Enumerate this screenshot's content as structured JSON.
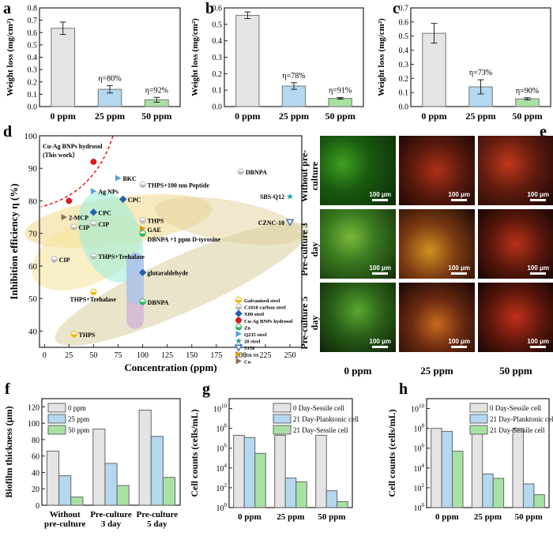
{
  "panels": {
    "a": "a",
    "b": "b",
    "c": "c",
    "d": "d",
    "e": "e",
    "f": "f",
    "g": "g",
    "h": "h"
  },
  "microscopy": {
    "rows": [
      "Without pre-culture",
      "Pre-culture 3 day",
      "Pre-culture 5 day"
    ],
    "cols": [
      "0 ppm",
      "25 ppm",
      "50 ppm"
    ],
    "scale_bar": "100 μm"
  },
  "colors": {
    "gray": "#e4e4e4",
    "blue": "#b3d8ef",
    "green": "#a8e2a3"
  },
  "chart_data": [
    {
      "id": "a",
      "type": "bar",
      "categories": [
        "0 ppm",
        "25 ppm",
        "50 ppm"
      ],
      "values": [
        0.635,
        0.14,
        0.055
      ],
      "errors": [
        0.05,
        0.03,
        0.02
      ],
      "annotations": [
        "",
        "η=80%",
        "η=92%"
      ],
      "ylabel": "Weight loss (mg/cm²)",
      "ylim": [
        0,
        0.8
      ],
      "yticks": [
        0.0,
        0.1,
        0.2,
        0.3,
        0.4,
        0.5,
        0.6,
        0.7,
        0.8
      ]
    },
    {
      "id": "b",
      "type": "bar",
      "categories": [
        "0 ppm",
        "25 ppm",
        "50 ppm"
      ],
      "values": [
        0.555,
        0.125,
        0.05
      ],
      "errors": [
        0.02,
        0.02,
        0.005
      ],
      "annotations": [
        "",
        "η=78%",
        "η=91%"
      ],
      "ylabel": "Weight loss (mg/cm²)",
      "ylim": [
        0,
        0.6
      ],
      "yticks": [
        0.0,
        0.1,
        0.2,
        0.3,
        0.4,
        0.5,
        0.6
      ]
    },
    {
      "id": "c",
      "type": "bar",
      "categories": [
        "0 ppm",
        "25 ppm",
        "50 ppm"
      ],
      "values": [
        0.52,
        0.14,
        0.055
      ],
      "errors": [
        0.07,
        0.05,
        0.008
      ],
      "annotations": [
        "",
        "η=73%",
        "η=90%"
      ],
      "ylabel": "Weight loss (mg/cm²)",
      "ylim": [
        0,
        0.7
      ],
      "yticks": [
        0.0,
        0.1,
        0.2,
        0.3,
        0.4,
        0.5,
        0.6,
        0.7
      ]
    },
    {
      "id": "d",
      "type": "scatter",
      "xlabel": "Concentration (ppm)",
      "ylabel": "Inhibition efficiency  η (%)",
      "xlim": [
        -5,
        262
      ],
      "ylim": [
        35,
        100
      ],
      "xticks": [
        0,
        25,
        50,
        75,
        100,
        125,
        150,
        175,
        200,
        225,
        250
      ],
      "yticks": [
        40,
        50,
        60,
        70,
        80,
        90,
        100
      ],
      "annotation": [
        "Cu-Ag BNPs hydrosol",
        "(This work）"
      ],
      "legend": [
        {
          "name": "Galvanized steel",
          "color": "#f5b800",
          "marker": "half"
        },
        {
          "name": "C1018 carbon steel",
          "color": "#b8b8b8",
          "marker": "half"
        },
        {
          "name": "X80 steel",
          "color": "#2460b0",
          "marker": "diamond"
        },
        {
          "name": "Cu-Ag BNPs hydrosol",
          "color": "#e8141c",
          "marker": "circle"
        },
        {
          "name": "Zn",
          "color": "#29b35a",
          "marker": "half"
        },
        {
          "name": "Q235 steel",
          "color": "#5aa0d8",
          "marker": "tri-right"
        },
        {
          "name": "20 steel",
          "color": "#1aa0a0",
          "marker": "star"
        },
        {
          "name": "S150",
          "color": "#2a5fae",
          "marker": "tri-down"
        },
        {
          "name": "316 SS",
          "color": "#d89a10",
          "marker": "tri-right"
        },
        {
          "name": "Cu",
          "color": "#8c6e5a",
          "marker": "tri-right"
        }
      ],
      "points": [
        {
          "x": 50,
          "y": 92,
          "label": "",
          "group": 3
        },
        {
          "x": 25,
          "y": 80,
          "label": "",
          "group": 3
        },
        {
          "x": 50,
          "y": 83,
          "label": "Ag NPs",
          "group": 5
        },
        {
          "x": 75,
          "y": 87,
          "label": "BKC",
          "group": 5
        },
        {
          "x": 100,
          "y": 85,
          "label": "THPS+100 nm Peptide",
          "group": 1
        },
        {
          "x": 200,
          "y": 89,
          "label": "DBNPA",
          "group": 1
        },
        {
          "x": 250,
          "y": 81.5,
          "label": "SBS-Q12",
          "group": 6
        },
        {
          "x": 80,
          "y": 80.5,
          "label": "CPC",
          "group": 2
        },
        {
          "x": 50,
          "y": 76.5,
          "label": "CPC",
          "group": 2
        },
        {
          "x": 20,
          "y": 75,
          "label": "2-MCP",
          "group": 9
        },
        {
          "x": 30,
          "y": 72,
          "label": "CIP",
          "group": 1
        },
        {
          "x": 50,
          "y": 73,
          "label": "CIP",
          "group": 1
        },
        {
          "x": 10,
          "y": 62,
          "label": "CIP",
          "group": 1
        },
        {
          "x": 100,
          "y": 74,
          "label": "THPS",
          "group": 1
        },
        {
          "x": 100,
          "y": 71.5,
          "label": "GAE",
          "group": 8
        },
        {
          "x": 100,
          "y": 70,
          "label": "DBNPA +1 ppm D-tyrosine",
          "group": 4
        },
        {
          "x": 250,
          "y": 73.5,
          "label": "CZNC-10",
          "group": 7
        },
        {
          "x": 50,
          "y": 63,
          "label": "THPS+Trehalase",
          "group": 1
        },
        {
          "x": 100,
          "y": 58,
          "label": "glutaraldehyde",
          "group": 2
        },
        {
          "x": 50,
          "y": 52,
          "label": "THPS+Trehalase",
          "group": 0
        },
        {
          "x": 100,
          "y": 49,
          "label": "DBNPA",
          "group": 4
        },
        {
          "x": 30,
          "y": 39,
          "label": "THPS",
          "group": 0
        }
      ]
    },
    {
      "id": "f",
      "type": "bar",
      "categories": [
        "Without\npre-culture",
        "Pre-culture\n3 day",
        "Pre-culture\n5 day"
      ],
      "series": [
        {
          "name": "0 ppm",
          "values": [
            66,
            93,
            116
          ]
        },
        {
          "name": "25 ppm",
          "values": [
            36,
            51,
            84
          ]
        },
        {
          "name": "50 ppm",
          "values": [
            10,
            24,
            34
          ]
        }
      ],
      "ylabel": "Biofilm thickness (μm)",
      "ylim": [
        0,
        130
      ],
      "yticks": [
        0,
        20,
        40,
        60,
        80,
        100,
        120
      ],
      "legend": "top-left"
    },
    {
      "id": "g",
      "type": "bar",
      "scale": "log",
      "categories": [
        "0 ppm",
        "25 ppm",
        "50 ppm"
      ],
      "series": [
        {
          "name": "0 Day-Sessile cell",
          "values": [
            20000000.0,
            20000000.0,
            20000000.0
          ]
        },
        {
          "name": "21 Day-Planktonic cell",
          "values": [
            12000000.0,
            1000.0,
            50
          ]
        },
        {
          "name": "21 Day-Sessile cell",
          "values": [
            300000.0,
            400.0,
            4
          ]
        }
      ],
      "ylabel": "Cell counts (cells/mL)",
      "ylim_exp": [
        0,
        11
      ],
      "ytick_exps": [
        0,
        2,
        4,
        6,
        8,
        10
      ],
      "legend": "top-right"
    },
    {
      "id": "h",
      "type": "bar",
      "scale": "log",
      "categories": [
        "0 ppm",
        "25 ppm",
        "50 ppm"
      ],
      "series": [
        {
          "name": "0 Day-Sessile cell",
          "values": [
            100000000.0,
            100000000.0,
            100000000.0
          ]
        },
        {
          "name": "21 Day-Planktonic cell",
          "values": [
            50000000.0,
            2500.0,
            250.0
          ]
        },
        {
          "name": "21 Day-Sessile cell",
          "values": [
            500000.0,
            900.0,
            20
          ]
        }
      ],
      "ylabel": "Cell counts (cells/mL)",
      "ylim_exp": [
        0,
        11
      ],
      "ytick_exps": [
        0,
        2,
        4,
        6,
        8,
        10
      ],
      "legend": "top-right"
    }
  ]
}
